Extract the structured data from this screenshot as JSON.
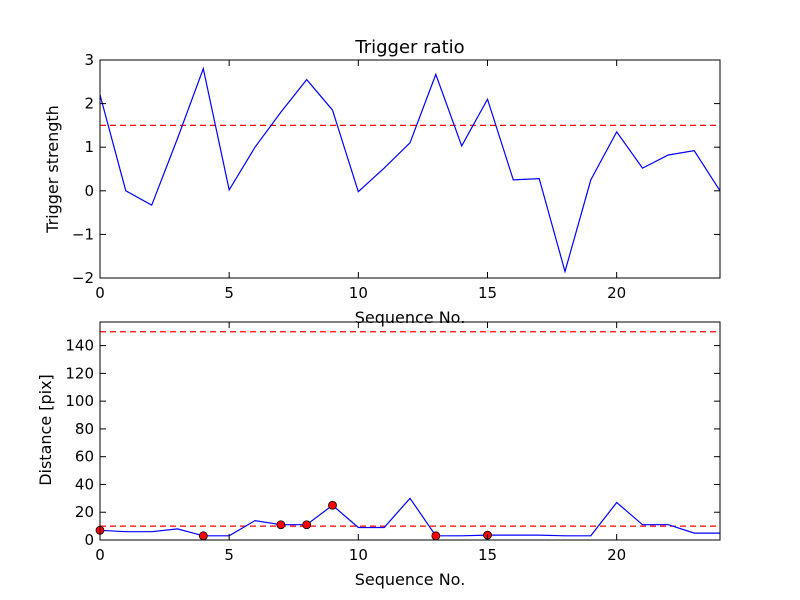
{
  "chart_data": [
    {
      "type": "line",
      "title": "Trigger ratio",
      "xlabel": "Sequence No.",
      "ylabel": "Trigger strength",
      "xlim": [
        0,
        24
      ],
      "ylim": [
        -2,
        3
      ],
      "xticks": [
        0,
        5,
        10,
        15,
        20
      ],
      "yticks": [
        -2,
        -1,
        0,
        1,
        2,
        3
      ],
      "grid": false,
      "series": [
        {
          "color": "#0000ff",
          "x": [
            0,
            1,
            2,
            3,
            4,
            5,
            6,
            7,
            8,
            9,
            10,
            11,
            12,
            13,
            14,
            15,
            16,
            17,
            18,
            19,
            20,
            21,
            22,
            23,
            24
          ],
          "values": [
            2.2,
            0.0,
            -0.33,
            1.2,
            2.8,
            0.02,
            1.0,
            1.8,
            2.55,
            1.85,
            -0.02,
            0.52,
            1.1,
            2.67,
            1.03,
            2.1,
            0.25,
            0.28,
            -1.85,
            0.25,
            1.35,
            0.52,
            0.82,
            0.92,
            0.0
          ]
        }
      ],
      "hlines": [
        {
          "y": 1.5,
          "color": "#ff0000",
          "style": "dashed"
        }
      ]
    },
    {
      "type": "line",
      "title": "",
      "xlabel": "Sequence No.",
      "ylabel": "Distance [pix]",
      "xlim": [
        0,
        24
      ],
      "ylim": [
        0,
        157
      ],
      "xticks": [
        0,
        5,
        10,
        15,
        20
      ],
      "yticks": [
        0,
        20,
        40,
        60,
        80,
        100,
        120,
        140
      ],
      "grid": false,
      "series": [
        {
          "color": "#0000ff",
          "x": [
            0,
            1,
            2,
            3,
            4,
            5,
            6,
            7,
            8,
            9,
            10,
            11,
            12,
            13,
            14,
            15,
            16,
            17,
            18,
            19,
            20,
            21,
            22,
            23,
            24
          ],
          "values": [
            7,
            6,
            6,
            8,
            3,
            3,
            14,
            11,
            11,
            25,
            9,
            9,
            30,
            3,
            3,
            3.5,
            3.5,
            3.5,
            3,
            3,
            27,
            11,
            11,
            5,
            5
          ]
        }
      ],
      "markers": {
        "color": "#ff0000",
        "x": [
          0,
          4,
          7,
          8,
          9,
          13,
          15
        ],
        "values": [
          7,
          3,
          11,
          11,
          25,
          3,
          3.5
        ]
      },
      "hlines": [
        {
          "y": 150,
          "color": "#ff0000",
          "style": "dashed"
        },
        {
          "y": 10,
          "color": "#ff0000",
          "style": "dashed"
        }
      ]
    }
  ]
}
